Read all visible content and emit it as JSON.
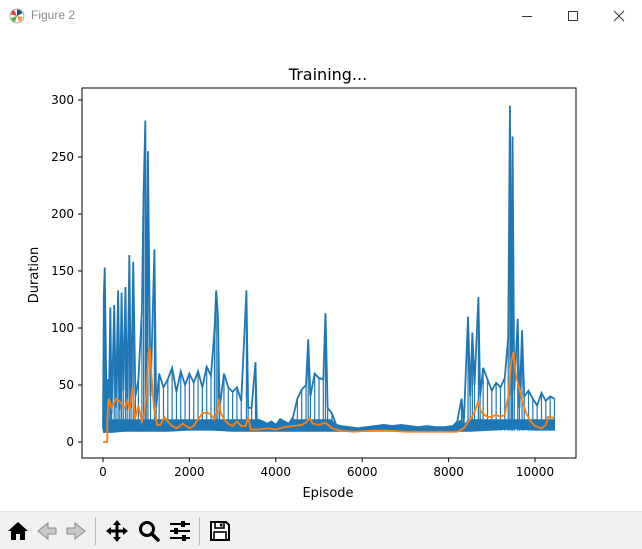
{
  "window": {
    "title": "Figure 2",
    "icons": {
      "app": "matplotlib-icon",
      "minimize": "minimize-icon",
      "maximize": "maximize-icon",
      "close": "close-icon"
    }
  },
  "toolbar": {
    "buttons": [
      {
        "name": "home-button",
        "icon": "home-icon"
      },
      {
        "name": "back-button",
        "icon": "back-arrow-icon"
      },
      {
        "name": "forward-button",
        "icon": "forward-arrow-icon"
      },
      {
        "name": "pan-button",
        "icon": "move-icon"
      },
      {
        "name": "zoom-button",
        "icon": "magnifier-icon"
      },
      {
        "name": "subplots-button",
        "icon": "sliders-icon"
      },
      {
        "name": "save-button",
        "icon": "floppy-disk-icon"
      }
    ]
  },
  "colors": {
    "series_raw": "#1f77b4",
    "series_mean": "#ff7f0e"
  },
  "chart_data": {
    "type": "line",
    "title": "Training...",
    "xlabel": "Episode",
    "ylabel": "Duration",
    "xlim": [
      -500,
      11000
    ],
    "ylim": [
      -15,
      310
    ],
    "xticks": [
      0,
      2000,
      4000,
      6000,
      8000,
      10000
    ],
    "xtick_labels": [
      "0",
      "2000",
      "4000",
      "6000",
      "8000",
      "10000"
    ],
    "yticks": [
      0,
      50,
      100,
      150,
      200,
      250,
      300
    ],
    "ytick_labels": [
      "0",
      "50",
      "100",
      "150",
      "200",
      "250",
      "300"
    ],
    "grid": false,
    "series": [
      {
        "color": "#1f77b4",
        "lines": [
          [
            0,
            12
          ],
          [
            20,
            129
          ],
          [
            40,
            153
          ],
          [
            60,
            100
          ],
          [
            80,
            30
          ],
          [
            100,
            55
          ],
          [
            130,
            20
          ],
          [
            170,
            118
          ],
          [
            200,
            25
          ],
          [
            260,
            120
          ],
          [
            300,
            30
          ],
          [
            350,
            133
          ],
          [
            390,
            28
          ],
          [
            430,
            131
          ],
          [
            470,
            45
          ],
          [
            520,
            136
          ],
          [
            560,
            28
          ],
          [
            610,
            164
          ],
          [
            650,
            30
          ],
          [
            700,
            158
          ],
          [
            750,
            40
          ],
          [
            820,
            55
          ],
          [
            900,
            115
          ],
          [
            940,
            220
          ],
          [
            980,
            282
          ],
          [
            1000,
            30
          ],
          [
            1040,
            255
          ],
          [
            1100,
            40
          ],
          [
            1190,
            169
          ],
          [
            1230,
            30
          ],
          [
            1300,
            60
          ],
          [
            1400,
            48
          ],
          [
            1500,
            55
          ],
          [
            1600,
            65
          ],
          [
            1700,
            44
          ],
          [
            1800,
            62
          ],
          [
            1900,
            50
          ],
          [
            2000,
            60
          ],
          [
            2100,
            52
          ],
          [
            2200,
            62
          ],
          [
            2300,
            48
          ],
          [
            2400,
            66
          ],
          [
            2500,
            58
          ],
          [
            2580,
            98
          ],
          [
            2620,
            133
          ],
          [
            2660,
            110
          ],
          [
            2700,
            30
          ],
          [
            2800,
            60
          ],
          [
            2900,
            48
          ],
          [
            3000,
            44
          ],
          [
            3100,
            48
          ],
          [
            3200,
            36
          ],
          [
            3320,
            133
          ],
          [
            3360,
            30
          ],
          [
            3440,
            30
          ],
          [
            3530,
            70
          ],
          [
            3560,
            20
          ],
          [
            3700,
            18
          ],
          [
            3800,
            16
          ],
          [
            3900,
            18
          ],
          [
            4000,
            15
          ],
          [
            4100,
            20
          ],
          [
            4200,
            18
          ],
          [
            4300,
            16
          ],
          [
            4400,
            22
          ],
          [
            4500,
            38
          ],
          [
            4600,
            46
          ],
          [
            4700,
            50
          ],
          [
            4750,
            90
          ],
          [
            4800,
            40
          ],
          [
            4900,
            60
          ],
          [
            5000,
            56
          ],
          [
            5100,
            55
          ],
          [
            5150,
            113
          ],
          [
            5200,
            30
          ],
          [
            5300,
            25
          ],
          [
            5400,
            15
          ],
          [
            5500,
            14
          ],
          [
            5700,
            13
          ],
          [
            5900,
            12
          ],
          [
            6100,
            13
          ],
          [
            6300,
            14
          ],
          [
            6500,
            15
          ],
          [
            6700,
            14
          ],
          [
            6900,
            15
          ],
          [
            7100,
            14
          ],
          [
            7300,
            13
          ],
          [
            7500,
            14
          ],
          [
            7700,
            13
          ],
          [
            7900,
            13
          ],
          [
            8100,
            14
          ],
          [
            8200,
            18
          ],
          [
            8300,
            38
          ],
          [
            8350,
            15
          ],
          [
            8450,
            110
          ],
          [
            8500,
            40
          ],
          [
            8550,
            96
          ],
          [
            8600,
            50
          ],
          [
            8690,
            127
          ],
          [
            8730,
            40
          ],
          [
            8800,
            65
          ],
          [
            8900,
            55
          ],
          [
            9000,
            45
          ],
          [
            9100,
            52
          ],
          [
            9200,
            48
          ],
          [
            9300,
            56
          ],
          [
            9380,
            92
          ],
          [
            9420,
            295
          ],
          [
            9460,
            40
          ],
          [
            9480,
            268
          ],
          [
            9520,
            45
          ],
          [
            9600,
            108
          ],
          [
            9640,
            30
          ],
          [
            9700,
            98
          ],
          [
            9750,
            40
          ],
          [
            9850,
            45
          ],
          [
            9950,
            38
          ],
          [
            10050,
            32
          ],
          [
            10150,
            43
          ],
          [
            10250,
            36
          ],
          [
            10350,
            40
          ],
          [
            10450,
            38
          ]
        ],
        "lows": [
          [
            0,
            8
          ],
          [
            200,
            8
          ],
          [
            500,
            9
          ],
          [
            800,
            9
          ],
          [
            1000,
            9
          ],
          [
            1500,
            9
          ],
          [
            2000,
            10
          ],
          [
            2500,
            10
          ],
          [
            3000,
            9
          ],
          [
            3500,
            9
          ],
          [
            4000,
            9
          ],
          [
            4500,
            9
          ],
          [
            5000,
            9
          ],
          [
            5500,
            9
          ],
          [
            6000,
            9
          ],
          [
            6500,
            9
          ],
          [
            7000,
            9
          ],
          [
            7500,
            9
          ],
          [
            8000,
            9
          ],
          [
            8500,
            9
          ],
          [
            9000,
            10
          ],
          [
            9500,
            11
          ],
          [
            10000,
            10
          ],
          [
            10450,
            10
          ]
        ]
      },
      {
        "color": "#ff7f0e",
        "lines": [
          [
            0,
            0
          ],
          [
            99,
            0
          ],
          [
            100,
            22
          ],
          [
            130,
            38
          ],
          [
            200,
            30
          ],
          [
            300,
            38
          ],
          [
            400,
            35
          ],
          [
            500,
            30
          ],
          [
            560,
            36
          ],
          [
            620,
            28
          ],
          [
            680,
            48
          ],
          [
            740,
            20
          ],
          [
            820,
            32
          ],
          [
            900,
            18
          ],
          [
            960,
            25
          ],
          [
            1000,
            40
          ],
          [
            1050,
            76
          ],
          [
            1080,
            83
          ],
          [
            1120,
            60
          ],
          [
            1180,
            30
          ],
          [
            1250,
            15
          ],
          [
            1330,
            15
          ],
          [
            1420,
            22
          ],
          [
            1500,
            18
          ],
          [
            1600,
            14
          ],
          [
            1700,
            12
          ],
          [
            1850,
            16
          ],
          [
            2000,
            12
          ],
          [
            2100,
            14
          ],
          [
            2200,
            20
          ],
          [
            2300,
            25
          ],
          [
            2400,
            26
          ],
          [
            2500,
            24
          ],
          [
            2580,
            20
          ],
          [
            2640,
            28
          ],
          [
            2680,
            38
          ],
          [
            2720,
            26
          ],
          [
            2800,
            20
          ],
          [
            2900,
            16
          ],
          [
            3000,
            14
          ],
          [
            3100,
            18
          ],
          [
            3200,
            14
          ],
          [
            3300,
            14
          ],
          [
            3360,
            22
          ],
          [
            3420,
            11
          ],
          [
            3600,
            11
          ],
          [
            3800,
            12
          ],
          [
            4000,
            11
          ],
          [
            4200,
            13
          ],
          [
            4400,
            14
          ],
          [
            4600,
            15
          ],
          [
            4700,
            17
          ],
          [
            4780,
            21
          ],
          [
            4860,
            16
          ],
          [
            5000,
            15
          ],
          [
            5150,
            17
          ],
          [
            5300,
            12
          ],
          [
            5500,
            10
          ],
          [
            5800,
            9
          ],
          [
            6200,
            10
          ],
          [
            6600,
            10
          ],
          [
            7000,
            9
          ],
          [
            7400,
            9
          ],
          [
            7800,
            9
          ],
          [
            8200,
            9
          ],
          [
            8350,
            12
          ],
          [
            8500,
            20
          ],
          [
            8600,
            26
          ],
          [
            8680,
            35
          ],
          [
            8760,
            26
          ],
          [
            8900,
            22
          ],
          [
            9000,
            22
          ],
          [
            9100,
            24
          ],
          [
            9200,
            22
          ],
          [
            9300,
            24
          ],
          [
            9380,
            40
          ],
          [
            9450,
            70
          ],
          [
            9500,
            79
          ],
          [
            9560,
            58
          ],
          [
            9650,
            45
          ],
          [
            9720,
            34
          ],
          [
            9800,
            25
          ],
          [
            9900,
            18
          ],
          [
            10000,
            14
          ],
          [
            10150,
            12
          ],
          [
            10250,
            15
          ],
          [
            10300,
            22
          ],
          [
            10450,
            21
          ]
        ]
      }
    ]
  }
}
